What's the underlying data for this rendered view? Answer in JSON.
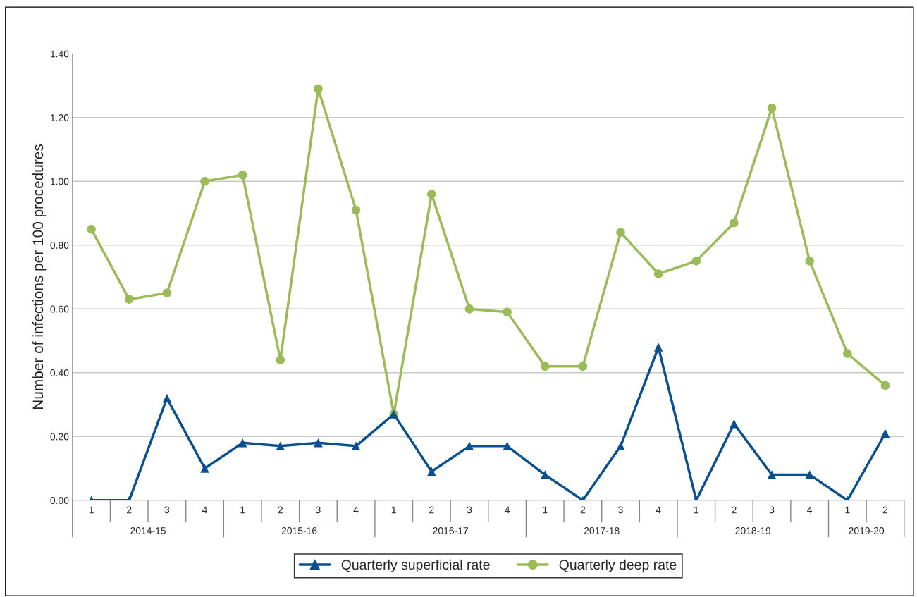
{
  "chart_data": {
    "type": "line",
    "ylabel": "Number of infections per 100 procedures",
    "categories": [
      "1",
      "2",
      "3",
      "4",
      "1",
      "2",
      "3",
      "4",
      "1",
      "2",
      "3",
      "4",
      "1",
      "2",
      "3",
      "4",
      "1",
      "2",
      "3",
      "4",
      "1",
      "2"
    ],
    "annotations": [
      "2014-15",
      "2015-16",
      "2016-17",
      "2017-18",
      "2018-19",
      "2019-20"
    ],
    "series": [
      {
        "name": "Quarterly superficial rate",
        "color": "#0a4f8f",
        "marker": "triangle",
        "values": [
          0,
          0,
          0.32,
          0.1,
          0.18,
          0.17,
          0.18,
          0.17,
          0.27,
          0.09,
          0.17,
          0.17,
          0.08,
          0,
          0.17,
          0.48,
          0,
          0.24,
          0.08,
          0.08,
          0,
          0.21
        ]
      },
      {
        "name": "Quarterly deep rate",
        "color": "#9bbb59",
        "marker": "circle",
        "values": [
          0.85,
          0.63,
          0.65,
          1.0,
          1.02,
          0.44,
          1.29,
          0.91,
          0.27,
          0.96,
          0.6,
          0.59,
          0.42,
          0.42,
          0.84,
          0.71,
          0.75,
          0.87,
          1.23,
          0.75,
          0.46,
          0.36
        ]
      }
    ],
    "ylim": [
      0,
      1.4
    ],
    "yticks": [
      {
        "value": 0,
        "label": "0.00"
      },
      {
        "value": 0.2,
        "label": "0.20"
      },
      {
        "value": 0.4,
        "label": "0.40"
      },
      {
        "value": 0.6,
        "label": "0.60"
      },
      {
        "value": 0.8,
        "label": "0.80"
      },
      {
        "value": 1.0,
        "label": "1.00"
      },
      {
        "value": 1.2,
        "label": "1.20"
      },
      {
        "value": 1.4,
        "label": "1.40"
      }
    ],
    "grid": "y",
    "legend": "bottom",
    "line_style": "solid"
  }
}
